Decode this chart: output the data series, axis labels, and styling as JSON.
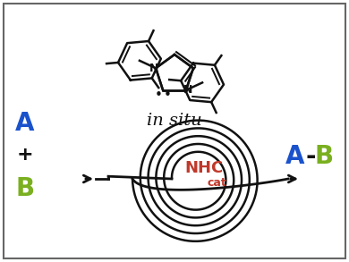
{
  "background_color": "#ffffff",
  "border_color": "#666666",
  "in_situ_text": "in situ",
  "label_A": "A",
  "label_B": "B",
  "label_plus": "+",
  "label_NHC": "NHC",
  "label_cat": "cat",
  "color_A": "#1a52cc",
  "color_B": "#7ab020",
  "color_NHC": "#c0392b",
  "color_black": "#111111",
  "fig_width": 3.9,
  "fig_height": 2.93,
  "dpi": 100
}
